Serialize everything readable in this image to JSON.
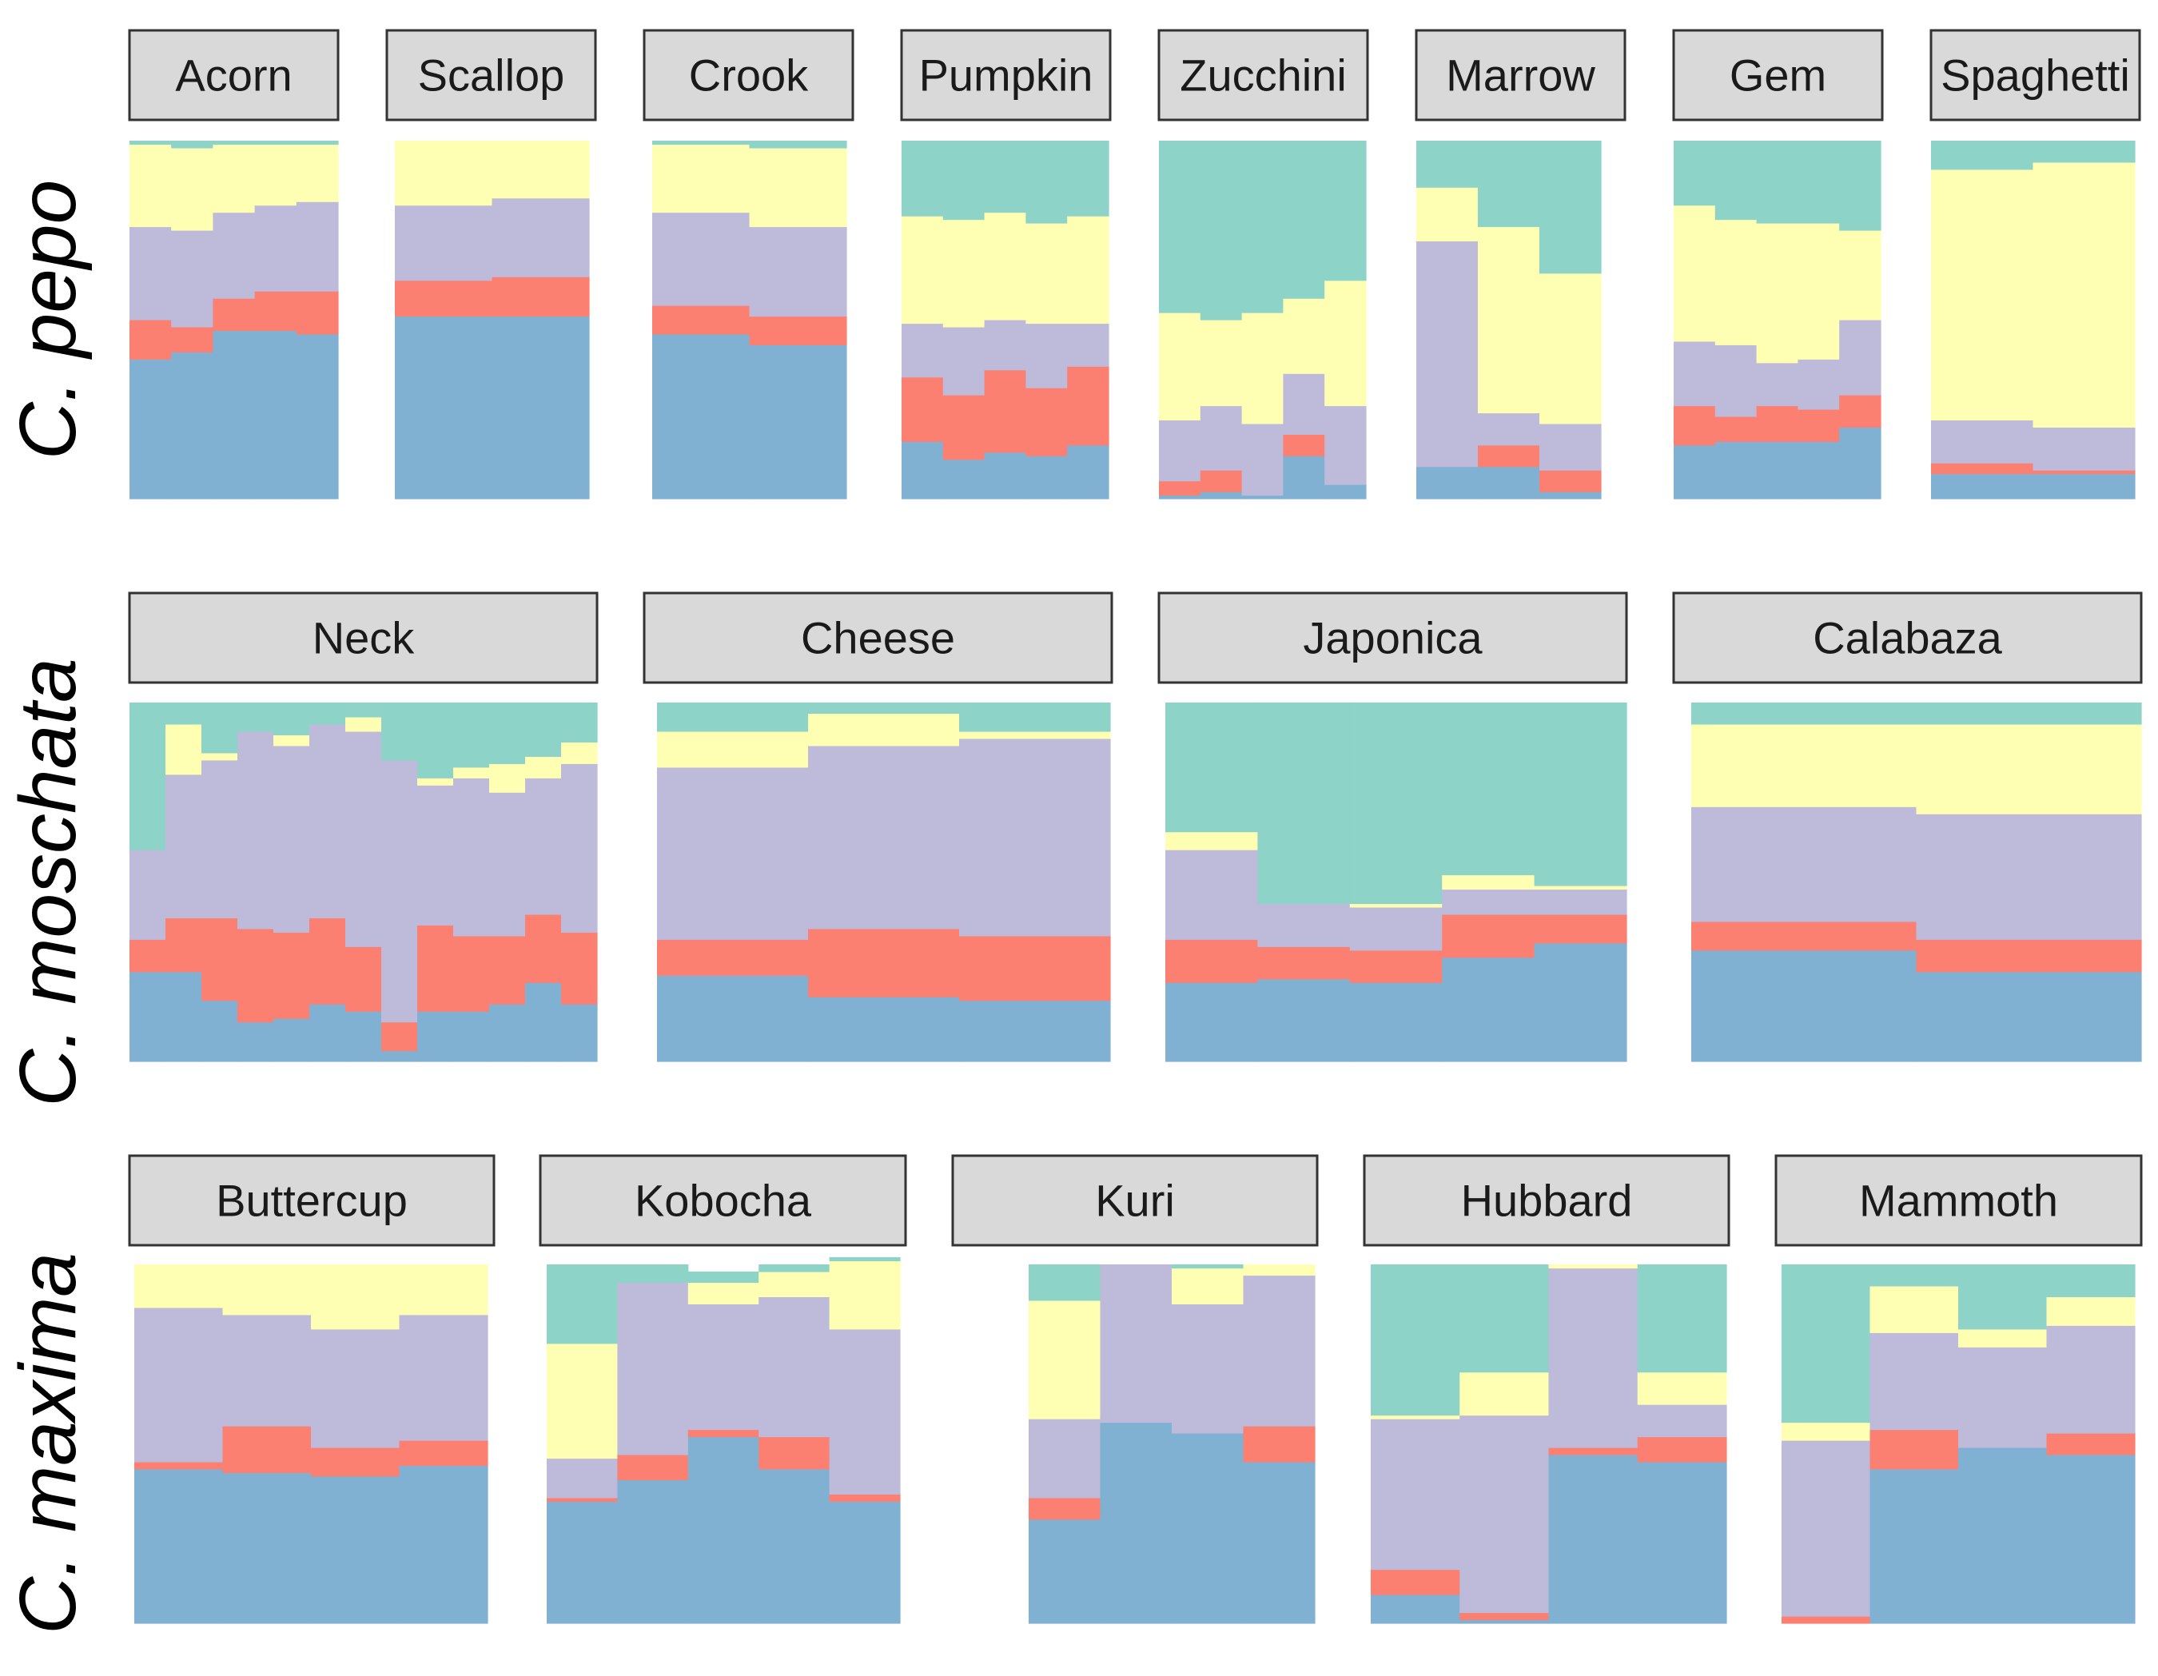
{
  "chart_data": {
    "type": "bar",
    "stacking": "stacked-proportion",
    "colors": [
      "#80b1d3",
      "#fb8072",
      "#bebada",
      "#ffffb3",
      "#8dd3c7"
    ],
    "layers_order": "bottom-to-top",
    "rows": [
      {
        "label": "C. pepo",
        "panels": [
          {
            "title": "Acorn",
            "columns": [
              [
                0.39,
                0.11,
                0.26,
                0.23,
                0.01
              ],
              [
                0.41,
                0.07,
                0.27,
                0.23,
                0.02
              ],
              [
                0.47,
                0.09,
                0.24,
                0.19,
                0.01
              ],
              [
                0.47,
                0.11,
                0.24,
                0.17,
                0.01
              ],
              [
                0.46,
                0.12,
                0.25,
                0.16,
                0.01
              ]
            ]
          },
          {
            "title": "Scallop",
            "columns": [
              [
                0.51,
                0.1,
                0.21,
                0.18,
                0.0
              ],
              [
                0.51,
                0.11,
                0.22,
                0.16,
                0.0
              ]
            ]
          },
          {
            "title": "Crook",
            "columns": [
              [
                0.46,
                0.08,
                0.26,
                0.19,
                0.01
              ],
              [
                0.43,
                0.08,
                0.25,
                0.22,
                0.02
              ]
            ]
          },
          {
            "title": "Pumpkin",
            "columns": [
              [
                0.16,
                0.18,
                0.15,
                0.3,
                0.21
              ],
              [
                0.11,
                0.18,
                0.19,
                0.3,
                0.22
              ],
              [
                0.13,
                0.23,
                0.14,
                0.3,
                0.2
              ],
              [
                0.12,
                0.19,
                0.18,
                0.28,
                0.23
              ],
              [
                0.15,
                0.22,
                0.12,
                0.3,
                0.21
              ]
            ]
          },
          {
            "title": "Zucchini",
            "columns": [
              [
                0.01,
                0.04,
                0.17,
                0.3,
                0.48
              ],
              [
                0.02,
                0.06,
                0.18,
                0.24,
                0.5
              ],
              [
                0.01,
                0.0,
                0.2,
                0.31,
                0.48
              ],
              [
                0.12,
                0.06,
                0.17,
                0.21,
                0.44
              ],
              [
                0.04,
                0.0,
                0.22,
                0.35,
                0.39
              ]
            ]
          },
          {
            "title": "Marrow",
            "columns": [
              [
                0.09,
                0.0,
                0.63,
                0.15,
                0.13
              ],
              [
                0.09,
                0.06,
                0.09,
                0.52,
                0.24
              ],
              [
                0.02,
                0.06,
                0.13,
                0.42,
                0.37
              ]
            ]
          },
          {
            "title": "Gem",
            "columns": [
              [
                0.15,
                0.11,
                0.18,
                0.38,
                0.18
              ],
              [
                0.16,
                0.07,
                0.2,
                0.35,
                0.22
              ],
              [
                0.16,
                0.1,
                0.12,
                0.39,
                0.23
              ],
              [
                0.16,
                0.09,
                0.14,
                0.38,
                0.23
              ],
              [
                0.2,
                0.09,
                0.21,
                0.25,
                0.25
              ]
            ]
          },
          {
            "title": "Spaghetti",
            "columns": [
              [
                0.07,
                0.03,
                0.12,
                0.7,
                0.08
              ],
              [
                0.07,
                0.01,
                0.12,
                0.74,
                0.06
              ]
            ]
          }
        ]
      },
      {
        "label": "C. moschata",
        "panels": [
          {
            "title": "Neck",
            "columns": [
              [
                0.25,
                0.09,
                0.25,
                0.0,
                0.41
              ],
              [
                0.25,
                0.15,
                0.4,
                0.14,
                0.06
              ],
              [
                0.17,
                0.23,
                0.44,
                0.02,
                0.14
              ],
              [
                0.11,
                0.26,
                0.55,
                0.0,
                0.08
              ],
              [
                0.12,
                0.24,
                0.52,
                0.03,
                0.09
              ],
              [
                0.16,
                0.24,
                0.54,
                0.0,
                0.06
              ],
              [
                0.14,
                0.18,
                0.6,
                0.04,
                0.04
              ],
              [
                0.03,
                0.08,
                0.73,
                0.0,
                0.16
              ],
              [
                0.14,
                0.24,
                0.39,
                0.02,
                0.21
              ],
              [
                0.14,
                0.21,
                0.44,
                0.03,
                0.18
              ],
              [
                0.16,
                0.19,
                0.4,
                0.08,
                0.17
              ],
              [
                0.22,
                0.19,
                0.38,
                0.06,
                0.15
              ],
              [
                0.16,
                0.2,
                0.47,
                0.06,
                0.11
              ]
            ]
          },
          {
            "title": "Cheese",
            "columns": [
              [
                0.24,
                0.1,
                0.48,
                0.1,
                0.08
              ],
              [
                0.18,
                0.19,
                0.51,
                0.09,
                0.03
              ],
              [
                0.17,
                0.18,
                0.55,
                0.02,
                0.08
              ]
            ]
          },
          {
            "title": "Japonica",
            "columns": [
              [
                0.22,
                0.12,
                0.25,
                0.05,
                0.36
              ],
              [
                0.23,
                0.09,
                0.12,
                0.0,
                0.56
              ],
              [
                0.22,
                0.09,
                0.12,
                0.01,
                0.56
              ],
              [
                0.29,
                0.12,
                0.07,
                0.04,
                0.48
              ],
              [
                0.33,
                0.08,
                0.07,
                0.01,
                0.51
              ]
            ]
          },
          {
            "title": "Calabaza",
            "columns": [
              [
                0.31,
                0.08,
                0.32,
                0.23,
                0.06
              ],
              [
                0.25,
                0.09,
                0.35,
                0.25,
                0.06
              ]
            ]
          }
        ]
      },
      {
        "label": "C. maxima",
        "panels": [
          {
            "title": "Buttercup",
            "columns": [
              [
                0.43,
                0.02,
                0.43,
                0.12,
                0.0
              ],
              [
                0.42,
                0.13,
                0.31,
                0.14,
                0.0
              ],
              [
                0.41,
                0.08,
                0.33,
                0.18,
                0.0
              ],
              [
                0.44,
                0.07,
                0.35,
                0.14,
                0.0
              ]
            ]
          },
          {
            "title": "Kobocha",
            "columns": [
              [
                0.34,
                0.01,
                0.11,
                0.32,
                0.22
              ],
              [
                0.4,
                0.07,
                0.48,
                0.0,
                0.05
              ],
              [
                0.52,
                0.02,
                0.35,
                0.06,
                0.03
              ],
              [
                0.43,
                0.09,
                0.39,
                0.07,
                0.02
              ],
              [
                0.34,
                0.02,
                0.46,
                0.19,
                0.01
              ]
            ]
          },
          {
            "title": "Kuri",
            "columns": [
              [
                0.29,
                0.06,
                0.22,
                0.33,
                0.1
              ],
              [
                0.56,
                0.0,
                0.44,
                0.0,
                0.0
              ],
              [
                0.53,
                0.0,
                0.36,
                0.1,
                0.01
              ],
              [
                0.45,
                0.1,
                0.42,
                0.03,
                0.0
              ]
            ]
          },
          {
            "title": "Hubbard",
            "columns": [
              [
                0.08,
                0.07,
                0.42,
                0.01,
                0.42
              ],
              [
                0.01,
                0.02,
                0.55,
                0.12,
                0.3
              ],
              [
                0.47,
                0.02,
                0.5,
                0.01,
                0.0
              ],
              [
                0.45,
                0.07,
                0.09,
                0.09,
                0.3
              ]
            ]
          },
          {
            "title": "Mammoth",
            "columns": [
              [
                0.0,
                0.02,
                0.49,
                0.05,
                0.44
              ],
              [
                0.43,
                0.11,
                0.27,
                0.13,
                0.06
              ],
              [
                0.49,
                0.0,
                0.28,
                0.05,
                0.18
              ],
              [
                0.47,
                0.06,
                0.3,
                0.08,
                0.09
              ]
            ]
          }
        ]
      }
    ]
  }
}
